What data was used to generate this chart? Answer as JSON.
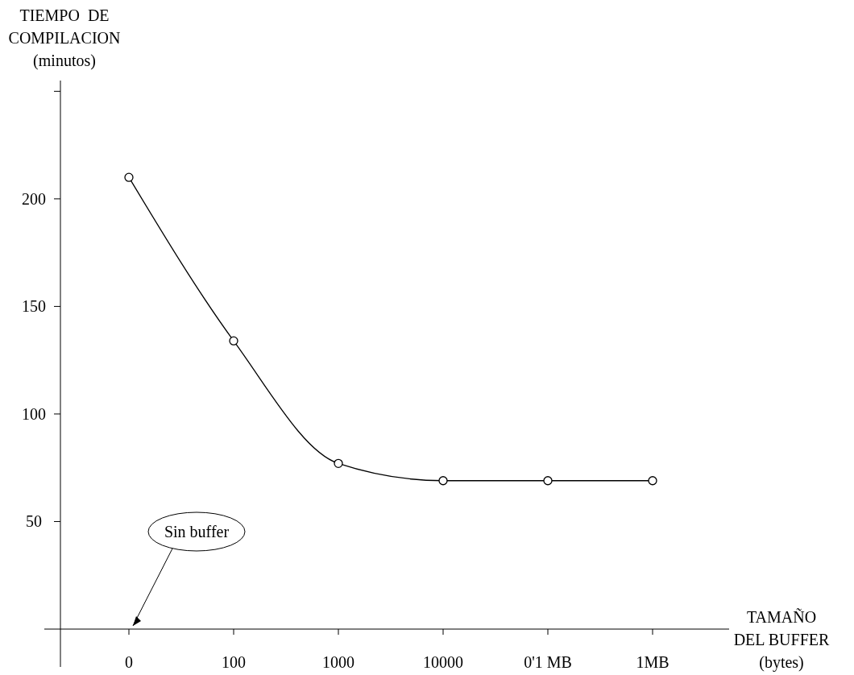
{
  "chart_data": {
    "type": "line",
    "ylabel": "TIEMPO  DE\nCOMPILACION\n(minutos)",
    "xlabel": "TAMAÑO\nDEL BUFFER\n(bytes)",
    "categories": [
      "0",
      "100",
      "1000",
      "10000",
      "0'1 MB",
      "1MB"
    ],
    "series": [
      {
        "color": "#000000",
        "values": [
          210,
          134,
          77,
          69,
          69,
          69
        ]
      }
    ],
    "ylim": [
      0,
      255
    ],
    "yticks": [
      50,
      100,
      150,
      200,
      {
        "value": 250,
        "label": null
      }
    ],
    "marker": "circle",
    "line_style": "solid",
    "grid": false,
    "annotations": [
      "Sin buffer"
    ]
  }
}
